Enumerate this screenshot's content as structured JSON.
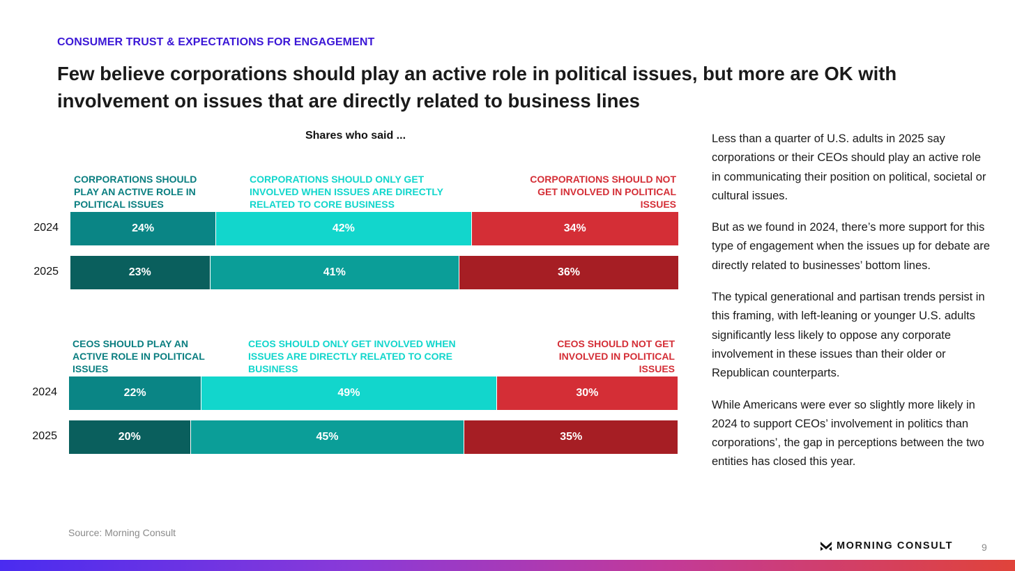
{
  "eyebrow": "CONSUMER TRUST & EXPECTATIONS FOR ENGAGEMENT",
  "headline": "Few believe corporations should play an active role in political issues, but more are OK with involvement on issues that are directly related to business lines",
  "chart_data": [
    {
      "type": "bar",
      "orientation": "horizontal",
      "stacked": true,
      "subtitle": "Shares who said ...",
      "categories": [
        "2024",
        "2025"
      ],
      "series": [
        {
          "name": "CORPORATIONS SHOULD PLAY AN ACTIVE ROLE IN POLITICAL ISSUES",
          "values": [
            24,
            23
          ],
          "value_labels": [
            "24%",
            "23%"
          ],
          "colors": [
            "#0a8585",
            "#0a5f5d"
          ]
        },
        {
          "name": "CORPORATIONS SHOULD ONLY GET INVOLVED WHEN ISSUES ARE DIRECTLY RELATED TO CORE BUSINESS",
          "values": [
            42,
            41
          ],
          "value_labels": [
            "42%",
            "41%"
          ],
          "colors": [
            "#12d6cc",
            "#0b9e98"
          ]
        },
        {
          "name": "CORPORATIONS SHOULD NOT GET INVOLVED IN POLITICAL ISSUES",
          "values": [
            34,
            36
          ],
          "value_labels": [
            "34%",
            "36%"
          ],
          "colors": [
            "#d42e36",
            "#a61e24"
          ]
        }
      ]
    },
    {
      "type": "bar",
      "orientation": "horizontal",
      "stacked": true,
      "categories": [
        "2024",
        "2025"
      ],
      "series": [
        {
          "name": "CEOS SHOULD PLAY AN ACTIVE ROLE IN POLITICAL ISSUES",
          "values": [
            22,
            20
          ],
          "value_labels": [
            "22%",
            "20%"
          ],
          "colors": [
            "#0a8585",
            "#0a5f5d"
          ]
        },
        {
          "name": "CEOS SHOULD ONLY GET INVOLVED WHEN ISSUES ARE DIRECTLY RELATED TO CORE BUSINESS",
          "values": [
            49,
            45
          ],
          "value_labels": [
            "49%",
            "45%"
          ],
          "colors": [
            "#12d6cc",
            "#0b9e98"
          ]
        },
        {
          "name": "CEOS SHOULD NOT GET INVOLVED IN POLITICAL ISSUES",
          "values": [
            30,
            35
          ],
          "value_labels": [
            "30%",
            "35%"
          ],
          "colors": [
            "#d42e36",
            "#a61e24"
          ]
        }
      ]
    }
  ],
  "legend_colors": [
    "#0a7e80",
    "#12d6cc",
    "#d42e36"
  ],
  "side_paragraphs": [
    "Less than a quarter of U.S. adults in 2025 say corporations or their CEOs should play an active role in communicating their position on political, societal or cultural issues.",
    "But as we found in 2024, there’s more support for this type of engagement when the issues up for debate are directly related to businesses’ bottom lines.",
    "The typical generational and partisan trends persist in this framing, with left-leaning or younger U.S. adults significantly less likely to oppose any corporate involvement in these issues than their older or Republican counterparts.",
    "While Americans were ever so slightly more likely in 2024 to support CEOs’ involvement in politics than corporations’, the gap in perceptions between the two entities has closed this year."
  ],
  "source": "Source: Morning Consult",
  "brand": "MORNING CONSULT",
  "brand_icon": "morning-consult-logo",
  "page_number": "9"
}
